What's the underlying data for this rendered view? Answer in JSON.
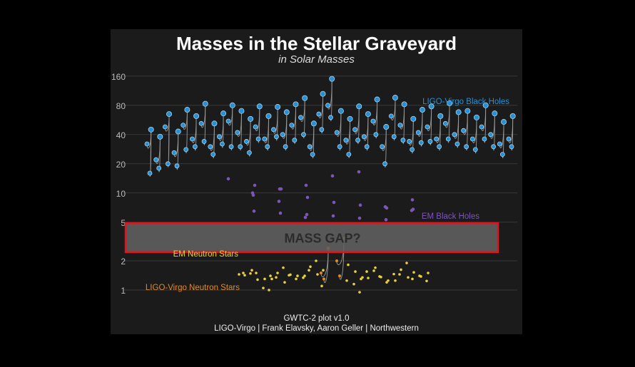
{
  "title": "Masses in the Stellar Graveyard",
  "subtitle": "in Solar Masses",
  "credits": {
    "line1": "GWTC-2 plot v1.0",
    "line2": "LIGO-Virgo | Frank Elavsky, Aaron Geller | Northwestern"
  },
  "colors": {
    "background": "#000000",
    "panel": "#1b1b1b",
    "ligo_bh": "#2a8fd0",
    "em_bh": "#7b55b8",
    "em_ns": "#e8d23a",
    "ligo_ns": "#e08a2a",
    "mass_gap_fill": "#5f5f5f",
    "highlight_box": "#e0141b"
  },
  "chart_data": {
    "type": "scatter",
    "title": "Masses in the Stellar Graveyard",
    "subtitle": "in Solar Masses",
    "yscale": "log",
    "ylim": [
      0.75,
      190
    ],
    "y_ticks": [
      1,
      2,
      5,
      10,
      20,
      40,
      80,
      160
    ],
    "grid": true,
    "annotations": {
      "mass_gap": "MASS GAP?",
      "mass_gap_range": [
        2.5,
        4.8
      ]
    },
    "series": [
      {
        "name": "LIGO-Virgo Black Holes",
        "color": "#2a8fd0",
        "mergers": [
          [
            32,
            16,
            45
          ],
          [
            22,
            18,
            38
          ],
          [
            48,
            20,
            65
          ],
          [
            26,
            19,
            43
          ],
          [
            50,
            28,
            72
          ],
          [
            36,
            30,
            62
          ],
          [
            52,
            34,
            83
          ],
          [
            30,
            25,
            52
          ],
          [
            38,
            32,
            66
          ],
          [
            55,
            30,
            80
          ],
          [
            42,
            30,
            70
          ],
          [
            34,
            26,
            58
          ],
          [
            48,
            36,
            78
          ],
          [
            36,
            30,
            62
          ],
          [
            45,
            38,
            77
          ],
          [
            40,
            30,
            68
          ],
          [
            50,
            35,
            82
          ],
          [
            60,
            40,
            95
          ],
          [
            30,
            25,
            52
          ],
          [
            65,
            45,
            105
          ],
          [
            80,
            60,
            150
          ],
          [
            42,
            30,
            70
          ],
          [
            35,
            25,
            58
          ],
          [
            45,
            35,
            78
          ],
          [
            38,
            30,
            65
          ],
          [
            55,
            40,
            92
          ],
          [
            30,
            20,
            48
          ],
          [
            62,
            38,
            96
          ],
          [
            50,
            35,
            82
          ],
          [
            34,
            28,
            58
          ],
          [
            42,
            33,
            72
          ],
          [
            48,
            34,
            78
          ],
          [
            36,
            30,
            62
          ],
          [
            52,
            36,
            84
          ],
          [
            40,
            32,
            68
          ],
          [
            44,
            30,
            70
          ],
          [
            36,
            28,
            60
          ],
          [
            48,
            36,
            80
          ],
          [
            40,
            30,
            66
          ],
          [
            32,
            25,
            54
          ],
          [
            36,
            30,
            62
          ]
        ],
        "label_position": "top-right"
      },
      {
        "name": "EM Black Holes",
        "color": "#7b55b8",
        "values": [
          14,
          12,
          11,
          9,
          8,
          7.5,
          7,
          6.8,
          6.5,
          6.2,
          6,
          5.8,
          5.5,
          5.3,
          8.5,
          9.5,
          11,
          12,
          15,
          16.5,
          7.2,
          6.6,
          10,
          8.2,
          5.6
        ],
        "label_position": "right"
      },
      {
        "name": "EM Neutron Stars",
        "color": "#e8d23a",
        "values": [
          1.45,
          1.35,
          1.3,
          1.25,
          1.4,
          1.5,
          1.6,
          1.7,
          1.2,
          1.35,
          1.45,
          1.55,
          1.3,
          1.25,
          1.4,
          1.38,
          1.42,
          1.33,
          1.5,
          1.62,
          1.74,
          1.82,
          1.28,
          1.36,
          1.44,
          1.52,
          1.6,
          1.3,
          1.4,
          1.46,
          1.34,
          1.24,
          1.48,
          1.58,
          1.7,
          1.9,
          2.0,
          1.15,
          1.05,
          1.2,
          1.3,
          1.4,
          1.5,
          1.55,
          1.35,
          1.45,
          1.6,
          1.25,
          1.5,
          1.38,
          1.42,
          1.3,
          1.1,
          0.95,
          1.0
        ],
        "label_position": "left"
      },
      {
        "name": "LIGO-Virgo Neutron Stars",
        "color": "#e08a2a",
        "mergers": [
          [
            1.5,
            1.3,
            2.7
          ],
          [
            2.0,
            1.4,
            3.4
          ]
        ],
        "label_position": "left"
      }
    ],
    "labels": {
      "ligo_bh": "LIGO-Virgo Black Holes",
      "em_bh": "EM Black Holes",
      "em_ns": "EM Neutron Stars",
      "ligo_ns": "LIGO-Virgo Neutron Stars"
    }
  }
}
